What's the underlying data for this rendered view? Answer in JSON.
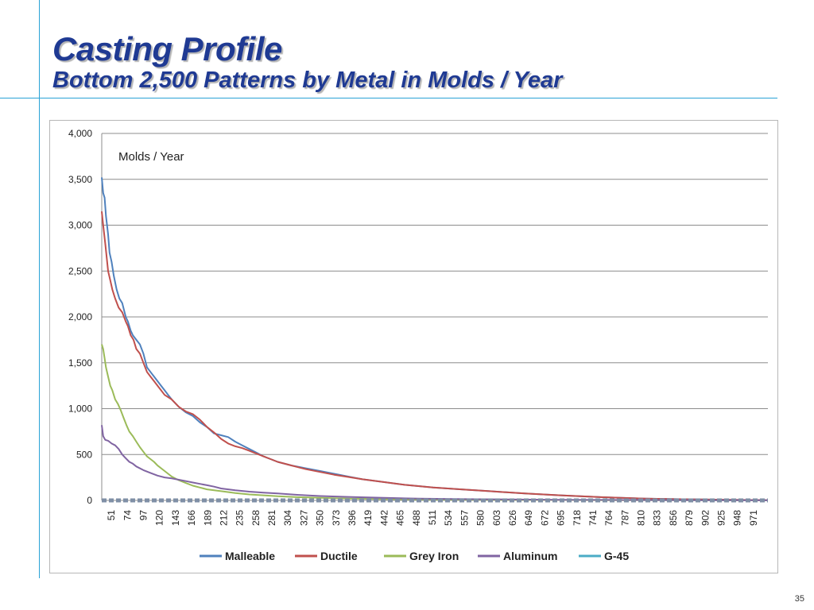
{
  "slide": {
    "title": "Casting Profile",
    "subtitle": "Bottom 2,500 Patterns by Metal in Molds / Year",
    "page_number": "35"
  },
  "colors": {
    "accent_line": "#29a3d6",
    "title": "#1f3a93"
  },
  "chart_data": {
    "type": "line",
    "title": "",
    "annotation": "Molds / Year",
    "xlabel": "",
    "ylabel": "",
    "ylim": [
      0,
      4000
    ],
    "yticks": [
      0,
      500,
      1000,
      1500,
      2000,
      2500,
      3000,
      3500,
      4000
    ],
    "ytick_labels": [
      "0",
      "500",
      "1,000",
      "1,500",
      "2,000",
      "2,500",
      "3,000",
      "3,500",
      "4,000"
    ],
    "xlim": [
      51,
      994
    ],
    "xtick_labels": [
      "51",
      "74",
      "97",
      "120",
      "143",
      "166",
      "189",
      "212",
      "235",
      "258",
      "281",
      "304",
      "327",
      "350",
      "373",
      "396",
      "419",
      "442",
      "465",
      "488",
      "511",
      "534",
      "557",
      "580",
      "603",
      "626",
      "649",
      "672",
      "695",
      "718",
      "741",
      "764",
      "787",
      "810",
      "833",
      "856",
      "879",
      "902",
      "925",
      "948",
      "971"
    ],
    "grid": true,
    "legend_position": "bottom",
    "series": [
      {
        "name": "Malleable",
        "color": "#4f81bd",
        "x": [
          51,
          53,
          55,
          57,
          60,
          62,
          65,
          68,
          72,
          76,
          80,
          85,
          88,
          92,
          95,
          100,
          105,
          110,
          115,
          120,
          125,
          130,
          135,
          140,
          145,
          150,
          160,
          170,
          180,
          190,
          200,
          210,
          220,
          230,
          240,
          250,
          260,
          270,
          280,
          290,
          300,
          320,
          340,
          360,
          380,
          400,
          420,
          450,
          480,
          520,
          560,
          600,
          650,
          700,
          760,
          820,
          880,
          940,
          994
        ],
        "y": [
          3520,
          3350,
          3300,
          3100,
          2900,
          2700,
          2600,
          2450,
          2300,
          2200,
          2150,
          2000,
          1950,
          1850,
          1800,
          1750,
          1700,
          1600,
          1450,
          1400,
          1350,
          1300,
          1250,
          1200,
          1150,
          1100,
          1020,
          960,
          920,
          850,
          800,
          730,
          710,
          690,
          640,
          600,
          560,
          520,
          480,
          450,
          420,
          380,
          350,
          320,
          290,
          260,
          230,
          200,
          170,
          140,
          120,
          100,
          75,
          55,
          35,
          20,
          12,
          6,
          3
        ]
      },
      {
        "name": "Ductile",
        "color": "#c0504d",
        "x": [
          51,
          53,
          56,
          60,
          63,
          66,
          70,
          75,
          80,
          85,
          88,
          92,
          96,
          100,
          105,
          110,
          115,
          120,
          125,
          130,
          140,
          150,
          160,
          170,
          180,
          190,
          200,
          210,
          220,
          230,
          240,
          250,
          260,
          270,
          280,
          290,
          300,
          320,
          340,
          360,
          380,
          400,
          420,
          450,
          480,
          520,
          560,
          600,
          650,
          700,
          760,
          820,
          880,
          940,
          994
        ],
        "y": [
          3150,
          3000,
          2800,
          2500,
          2400,
          2300,
          2200,
          2100,
          2050,
          1950,
          1900,
          1800,
          1750,
          1650,
          1600,
          1500,
          1400,
          1350,
          1300,
          1250,
          1150,
          1100,
          1020,
          970,
          940,
          880,
          800,
          740,
          670,
          620,
          590,
          570,
          540,
          510,
          480,
          450,
          420,
          380,
          340,
          310,
          280,
          255,
          230,
          200,
          170,
          140,
          120,
          100,
          75,
          55,
          35,
          20,
          12,
          6,
          3
        ]
      },
      {
        "name": "Grey Iron",
        "color": "#9bbb59",
        "x": [
          51,
          53,
          55,
          57,
          60,
          63,
          66,
          70,
          74,
          78,
          82,
          86,
          90,
          95,
          100,
          105,
          110,
          115,
          120,
          125,
          130,
          140,
          150,
          160,
          170,
          180,
          190,
          200,
          220,
          240,
          260,
          280,
          300,
          330,
          360,
          400,
          450,
          500,
          600,
          700,
          800,
          900,
          994
        ],
        "y": [
          1700,
          1650,
          1550,
          1450,
          1350,
          1250,
          1200,
          1100,
          1050,
          980,
          900,
          820,
          750,
          700,
          640,
          580,
          530,
          480,
          450,
          420,
          380,
          320,
          260,
          220,
          190,
          160,
          140,
          120,
          100,
          80,
          65,
          55,
          45,
          35,
          28,
          20,
          14,
          10,
          6,
          4,
          2,
          1,
          0
        ]
      },
      {
        "name": "Aluminum",
        "color": "#8064a2",
        "x": [
          51,
          53,
          56,
          60,
          65,
          70,
          75,
          80,
          85,
          90,
          95,
          100,
          110,
          120,
          130,
          140,
          150,
          160,
          170,
          180,
          190,
          200,
          210,
          220,
          240,
          260,
          280,
          300,
          330,
          360,
          400,
          450,
          500,
          550,
          600,
          700,
          800,
          900,
          994
        ],
        "y": [
          820,
          700,
          660,
          650,
          620,
          600,
          560,
          500,
          460,
          420,
          400,
          370,
          330,
          300,
          270,
          250,
          240,
          225,
          210,
          195,
          180,
          165,
          150,
          130,
          110,
          95,
          85,
          75,
          60,
          48,
          38,
          28,
          20,
          15,
          12,
          7,
          4,
          2,
          1
        ]
      },
      {
        "name": "G-45",
        "color": "#4bacc6",
        "x": [
          51,
          60,
          70,
          80,
          90,
          100,
          150,
          200,
          300,
          400,
          500,
          600,
          700,
          800,
          900,
          994
        ],
        "y": [
          0,
          0,
          0,
          0,
          0,
          0,
          0,
          0,
          0,
          0,
          0,
          0,
          0,
          0,
          0,
          0
        ]
      }
    ]
  }
}
